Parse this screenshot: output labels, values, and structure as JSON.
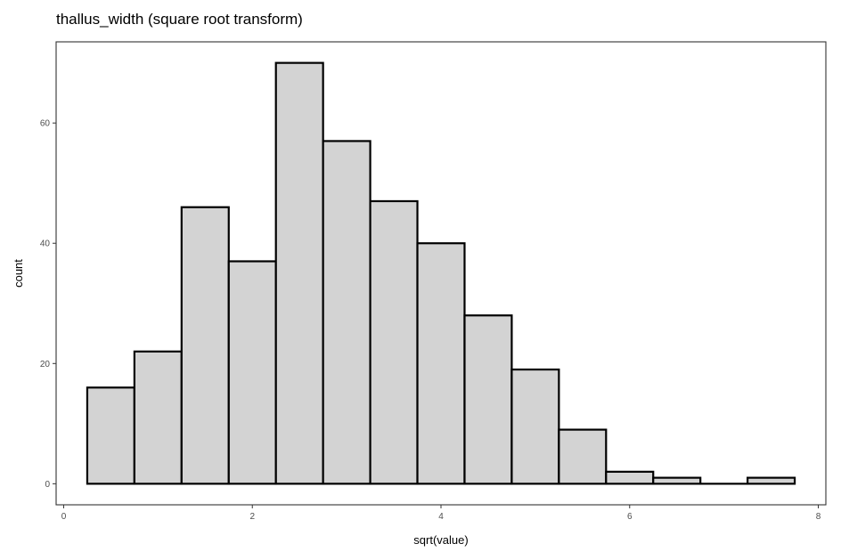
{
  "chart_data": {
    "type": "bar",
    "title": "thallus_width (square root transform)",
    "xlabel": "sqrt(value)",
    "ylabel": "count",
    "xlim": [
      -0.08,
      8.08
    ],
    "ylim": [
      -3.5,
      73.5
    ],
    "x_ticks": [
      0,
      2,
      4,
      6,
      8
    ],
    "x_tick_labels": [
      "0",
      "2",
      "4",
      "6",
      "8"
    ],
    "y_ticks": [
      0,
      20,
      40,
      60
    ],
    "y_tick_labels": [
      "0",
      "20",
      "40",
      "60"
    ],
    "grid": false,
    "bin_width": 0.5,
    "bins": [
      {
        "start": 0.25,
        "end": 0.75,
        "count": 16
      },
      {
        "start": 0.75,
        "end": 1.25,
        "count": 22
      },
      {
        "start": 1.25,
        "end": 1.75,
        "count": 46
      },
      {
        "start": 1.75,
        "end": 2.25,
        "count": 37
      },
      {
        "start": 2.25,
        "end": 2.75,
        "count": 70
      },
      {
        "start": 2.75,
        "end": 3.25,
        "count": 57
      },
      {
        "start": 3.25,
        "end": 3.75,
        "count": 47
      },
      {
        "start": 3.75,
        "end": 4.25,
        "count": 40
      },
      {
        "start": 4.25,
        "end": 4.75,
        "count": 28
      },
      {
        "start": 4.75,
        "end": 5.25,
        "count": 19
      },
      {
        "start": 5.25,
        "end": 5.75,
        "count": 9
      },
      {
        "start": 5.75,
        "end": 6.25,
        "count": 2
      },
      {
        "start": 6.25,
        "end": 6.75,
        "count": 1
      },
      {
        "start": 6.75,
        "end": 7.25,
        "count": 0
      },
      {
        "start": 7.25,
        "end": 7.75,
        "count": 1
      }
    ],
    "colors": {
      "bar_fill": "#d3d3d3",
      "bar_stroke": "#000000",
      "panel_border": "#333333",
      "tick_text": "#4d4d4d"
    }
  }
}
